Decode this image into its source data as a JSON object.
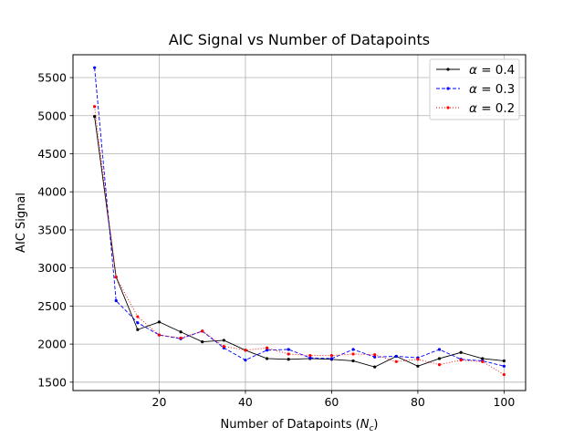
{
  "chart_data": {
    "type": "line",
    "title": "AIC Signal vs Number of Datapoints",
    "xlabel_main": "Number of Datapoints (",
    "xlabel_var": "N",
    "xlabel_sub": "c",
    "xlabel_close": ")",
    "ylabel": "AIC Signal",
    "xlim": [
      0,
      105
    ],
    "ylim": [
      1390,
      5800
    ],
    "xticks": [
      20,
      40,
      60,
      80,
      100
    ],
    "yticks": [
      1500,
      2000,
      2500,
      3000,
      3500,
      4000,
      4500,
      5000,
      5500
    ],
    "grid": true,
    "legend_position": "top-right",
    "x": [
      5,
      10,
      15,
      20,
      25,
      30,
      35,
      40,
      45,
      50,
      55,
      60,
      65,
      70,
      75,
      80,
      85,
      90,
      95,
      100
    ],
    "series": [
      {
        "name_var": "α",
        "name_value": " = 0.4",
        "color": "#000000",
        "dash": "",
        "values": [
          4990,
          2880,
          2190,
          2290,
          2160,
          2030,
          2050,
          1920,
          1810,
          1800,
          1810,
          1800,
          1780,
          1700,
          1840,
          1710,
          1810,
          1890,
          1810,
          1780
        ]
      },
      {
        "name_var": "α",
        "name_value": " = 0.3",
        "color": "#0000ff",
        "dash": "4,2",
        "values": [
          5630,
          2570,
          2280,
          2120,
          2070,
          2170,
          1950,
          1790,
          1920,
          1930,
          1820,
          1810,
          1930,
          1830,
          1840,
          1820,
          1930,
          1800,
          1780,
          1710
        ]
      },
      {
        "name_var": "α",
        "name_value": " = 0.2",
        "color": "#ff0000",
        "dash": "1,2",
        "values": [
          5120,
          2880,
          2360,
          2120,
          2080,
          2170,
          1970,
          1920,
          1950,
          1870,
          1850,
          1850,
          1870,
          1860,
          1770,
          1800,
          1730,
          1790,
          1770,
          1600
        ]
      }
    ]
  }
}
